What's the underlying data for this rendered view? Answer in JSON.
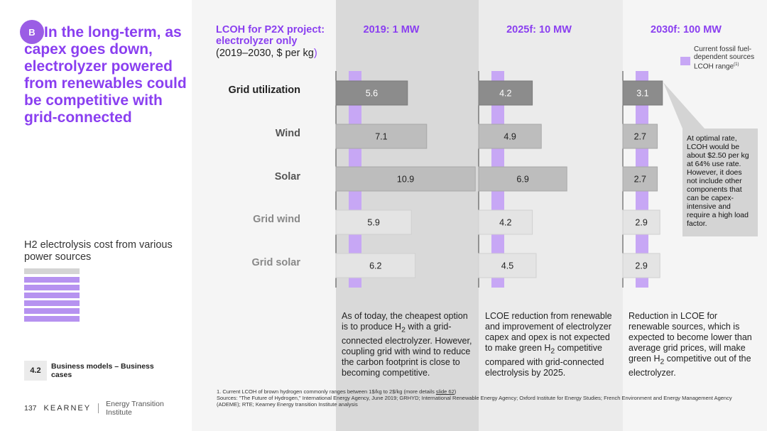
{
  "left": {
    "badge": "B",
    "headline": "In the long-term, as capex goes down, electrolyzer powered from renewables could be competitive with grid-connected",
    "subtitle": "H2 electrolysis cost from various power sources",
    "section_number": "4.2",
    "section_label": "Business models – Business cases",
    "page_number": "137",
    "brand": "KEARNEY",
    "brand_sub": "Energy Transition Institute"
  },
  "chart_header": {
    "title_line1": "LCOH for P2X project:",
    "title_line2": "electrolyzer only",
    "subtitle_main": "(2019–2030, $ per kg",
    "subtitle_paren": ")"
  },
  "range_legend": {
    "text": "Current fossil fuel-dependent sources LCOH range",
    "footnote_mark": "(1)"
  },
  "callout": "At optimal rate, LCOH would be about $2.50 per kg at 64% use rate. However, it does not include other components that can be capex-intensive and require a high load factor.",
  "descriptions": [
    {
      "pre": "As of today, the cheapest option is to produce H",
      "sub": "2",
      "post": " with a grid-connected electrolyzer. However, coupling grid with wind to reduce the carbon footprint is close to becoming competitive."
    },
    {
      "pre": "LCOE reduction from renewable and improvement of electrolyzer capex and opex is not expected to make green H",
      "sub": "2",
      "post": " competitive compared with grid-connected electrolysis by 2025."
    },
    {
      "pre": "Reduction in LCOE for renewable sources, which is expected to become lower than average grid prices, will make green H",
      "sub": "2",
      "post": " competitive out of the electrolyzer."
    }
  ],
  "notes": {
    "note1_pre": "1. Current LCOH of brown hydrogen commonly ranges between 1$/kg to 2$/kg (more details ",
    "note1_link": "slide 62",
    "note1_post": ")",
    "sources": "Sources: \"The Future of Hydrogen,\" International Energy Agency, June 2019; GRHYD; International Renewable Energy Agency; Oxford Institute for Energy Studies; French Environment and Energy Management Agency (ADEME); RTE; Kearney Energy transition Institute analysis"
  },
  "colors": {
    "purple_text": "#8a3ff0",
    "range_purple": "#c7a7f5",
    "bar_dark": "#8c8c8c",
    "bar_mid": "#bdbdbd",
    "bar_light": "#e4e4e4"
  },
  "chart_data": {
    "type": "bar",
    "orientation": "horizontal",
    "title": "LCOH for P2X project: electrolyzer only",
    "subtitle": "(2019–2030, $ per kg)",
    "categories": [
      "Grid utilization",
      "Wind",
      "Solar",
      "Grid wind",
      "Grid solar"
    ],
    "series": [
      {
        "name": "2019: 1 MW",
        "values": [
          5.6,
          7.1,
          10.9,
          5.9,
          6.2
        ]
      },
      {
        "name": "2025f: 10 MW",
        "values": [
          4.2,
          4.9,
          6.9,
          4.2,
          4.5
        ]
      },
      {
        "name": "2030f: 100 MW",
        "values": [
          3.1,
          2.7,
          2.7,
          2.9,
          2.9
        ]
      }
    ],
    "xlim": [
      0,
      11
    ],
    "fossil_range": [
      1,
      2
    ],
    "bar_styles": [
      "dark",
      "mid",
      "mid",
      "light",
      "light"
    ]
  }
}
